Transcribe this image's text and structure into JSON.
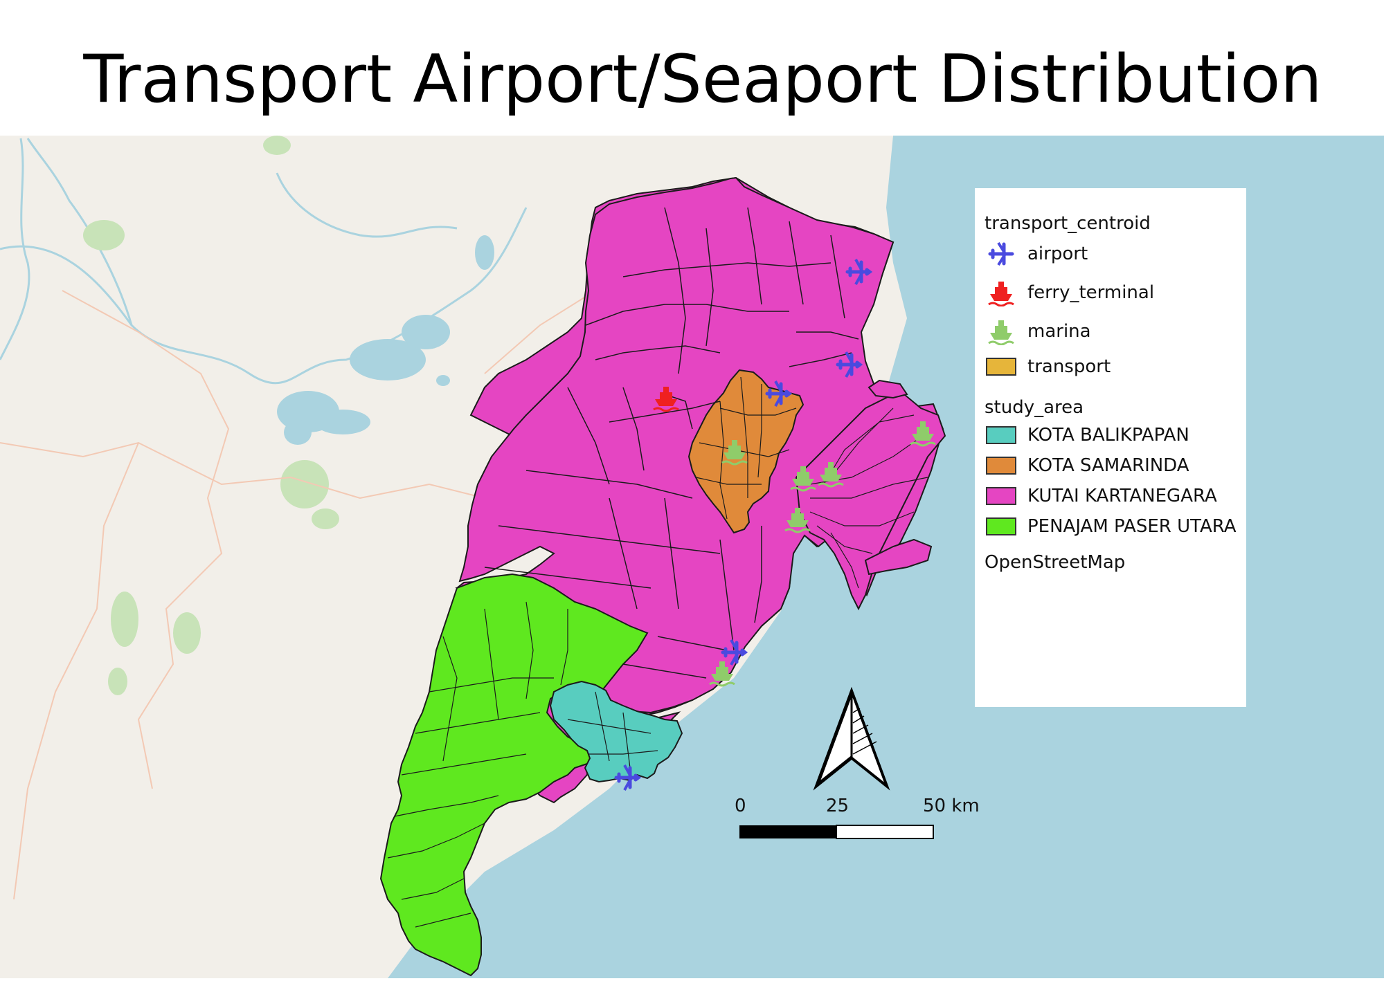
{
  "title": "Transport Airport/Seaport Distribution",
  "legend": {
    "group1": "transport_centroid",
    "items1": [
      {
        "label": "airport",
        "icon": "airplane-icon",
        "color": "#4a4adf"
      },
      {
        "label": "ferry_terminal",
        "icon": "ferry-icon",
        "color": "#ef2020"
      },
      {
        "label": "marina",
        "icon": "boat-icon",
        "color": "#8fcc6a"
      }
    ],
    "transport": {
      "label": "transport",
      "color": "#e6b53a"
    },
    "group2": "study_area",
    "items2": [
      {
        "label": "KOTA BALIKPAPAN",
        "color": "#58cdbf"
      },
      {
        "label": "KOTA SAMARINDA",
        "color": "#e08a3a"
      },
      {
        "label": "KUTAI KARTANEGARA",
        "color": "#e545c2"
      },
      {
        "label": "PENAJAM PASER UTARA",
        "color": "#5fe81f"
      }
    ],
    "basemap": "OpenStreetMap"
  },
  "scale_bar": {
    "labels": [
      "0",
      "25",
      "50 km"
    ]
  },
  "colors": {
    "sea": "#aad3df",
    "land": "#f2efe9",
    "water": "#aad3df"
  }
}
